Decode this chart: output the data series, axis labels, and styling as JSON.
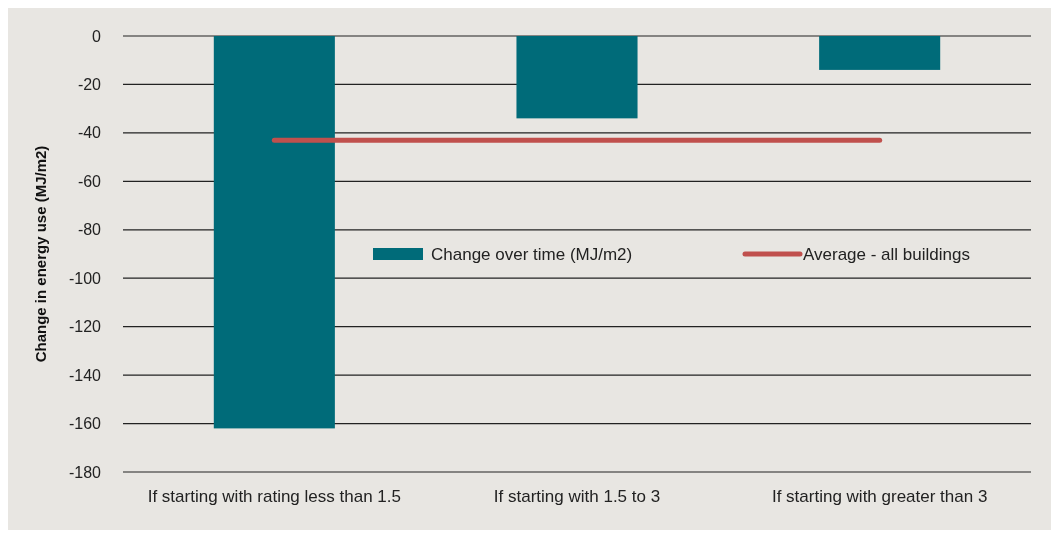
{
  "chart_data": {
    "type": "bar",
    "ylabel": "Change in energy use (MJ/m2)",
    "categories": [
      "If starting with rating less than 1.5",
      "If starting with 1.5 to 3",
      "If starting with greater than 3"
    ],
    "series": [
      {
        "name": "Change over time (MJ/m2)",
        "color": "#006b79",
        "values": [
          -162,
          -34,
          -14
        ]
      },
      {
        "name": "Average - all buildings",
        "type": "line",
        "color": "#c0504d",
        "values": [
          -43,
          -43,
          -43
        ]
      }
    ],
    "ylim": [
      -180,
      0
    ],
    "yticks": [
      -180,
      -160,
      -140,
      -120,
      -100,
      -80,
      -60,
      -40,
      -20,
      0
    ],
    "grid": "y",
    "legend": "center"
  }
}
